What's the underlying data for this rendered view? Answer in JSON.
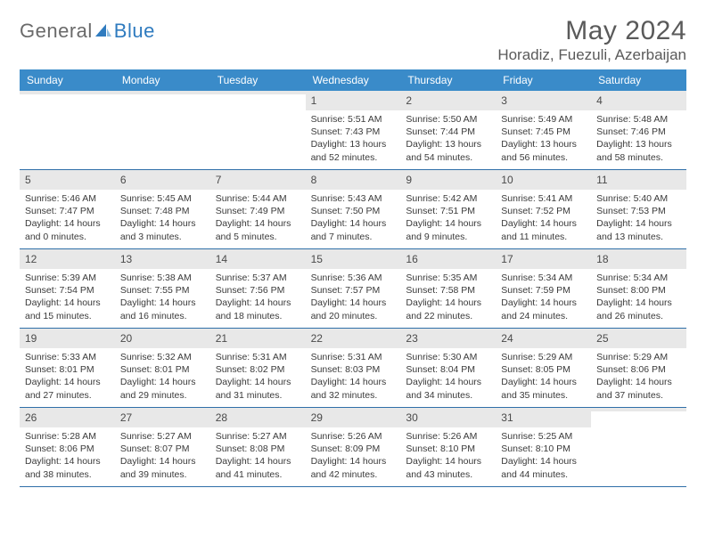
{
  "logo": {
    "general": "General",
    "blue": "Blue"
  },
  "title": "May 2024",
  "location": "Horadiz, Fuezuli, Azerbaijan",
  "colors": {
    "header_bg": "#3a8bc9",
    "header_text": "#ffffff",
    "daynum_bg": "#e8e8e8",
    "week_border": "#2f6fa8",
    "logo_blue": "#2f7bbf",
    "body_text": "#3a3a3a"
  },
  "day_names": [
    "Sunday",
    "Monday",
    "Tuesday",
    "Wednesday",
    "Thursday",
    "Friday",
    "Saturday"
  ],
  "weeks": [
    [
      {
        "empty": true
      },
      {
        "empty": true
      },
      {
        "empty": true
      },
      {
        "day": "1",
        "sunrise": "Sunrise: 5:51 AM",
        "sunset": "Sunset: 7:43 PM",
        "daylight1": "Daylight: 13 hours",
        "daylight2": "and 52 minutes."
      },
      {
        "day": "2",
        "sunrise": "Sunrise: 5:50 AM",
        "sunset": "Sunset: 7:44 PM",
        "daylight1": "Daylight: 13 hours",
        "daylight2": "and 54 minutes."
      },
      {
        "day": "3",
        "sunrise": "Sunrise: 5:49 AM",
        "sunset": "Sunset: 7:45 PM",
        "daylight1": "Daylight: 13 hours",
        "daylight2": "and 56 minutes."
      },
      {
        "day": "4",
        "sunrise": "Sunrise: 5:48 AM",
        "sunset": "Sunset: 7:46 PM",
        "daylight1": "Daylight: 13 hours",
        "daylight2": "and 58 minutes."
      }
    ],
    [
      {
        "day": "5",
        "sunrise": "Sunrise: 5:46 AM",
        "sunset": "Sunset: 7:47 PM",
        "daylight1": "Daylight: 14 hours",
        "daylight2": "and 0 minutes."
      },
      {
        "day": "6",
        "sunrise": "Sunrise: 5:45 AM",
        "sunset": "Sunset: 7:48 PM",
        "daylight1": "Daylight: 14 hours",
        "daylight2": "and 3 minutes."
      },
      {
        "day": "7",
        "sunrise": "Sunrise: 5:44 AM",
        "sunset": "Sunset: 7:49 PM",
        "daylight1": "Daylight: 14 hours",
        "daylight2": "and 5 minutes."
      },
      {
        "day": "8",
        "sunrise": "Sunrise: 5:43 AM",
        "sunset": "Sunset: 7:50 PM",
        "daylight1": "Daylight: 14 hours",
        "daylight2": "and 7 minutes."
      },
      {
        "day": "9",
        "sunrise": "Sunrise: 5:42 AM",
        "sunset": "Sunset: 7:51 PM",
        "daylight1": "Daylight: 14 hours",
        "daylight2": "and 9 minutes."
      },
      {
        "day": "10",
        "sunrise": "Sunrise: 5:41 AM",
        "sunset": "Sunset: 7:52 PM",
        "daylight1": "Daylight: 14 hours",
        "daylight2": "and 11 minutes."
      },
      {
        "day": "11",
        "sunrise": "Sunrise: 5:40 AM",
        "sunset": "Sunset: 7:53 PM",
        "daylight1": "Daylight: 14 hours",
        "daylight2": "and 13 minutes."
      }
    ],
    [
      {
        "day": "12",
        "sunrise": "Sunrise: 5:39 AM",
        "sunset": "Sunset: 7:54 PM",
        "daylight1": "Daylight: 14 hours",
        "daylight2": "and 15 minutes."
      },
      {
        "day": "13",
        "sunrise": "Sunrise: 5:38 AM",
        "sunset": "Sunset: 7:55 PM",
        "daylight1": "Daylight: 14 hours",
        "daylight2": "and 16 minutes."
      },
      {
        "day": "14",
        "sunrise": "Sunrise: 5:37 AM",
        "sunset": "Sunset: 7:56 PM",
        "daylight1": "Daylight: 14 hours",
        "daylight2": "and 18 minutes."
      },
      {
        "day": "15",
        "sunrise": "Sunrise: 5:36 AM",
        "sunset": "Sunset: 7:57 PM",
        "daylight1": "Daylight: 14 hours",
        "daylight2": "and 20 minutes."
      },
      {
        "day": "16",
        "sunrise": "Sunrise: 5:35 AM",
        "sunset": "Sunset: 7:58 PM",
        "daylight1": "Daylight: 14 hours",
        "daylight2": "and 22 minutes."
      },
      {
        "day": "17",
        "sunrise": "Sunrise: 5:34 AM",
        "sunset": "Sunset: 7:59 PM",
        "daylight1": "Daylight: 14 hours",
        "daylight2": "and 24 minutes."
      },
      {
        "day": "18",
        "sunrise": "Sunrise: 5:34 AM",
        "sunset": "Sunset: 8:00 PM",
        "daylight1": "Daylight: 14 hours",
        "daylight2": "and 26 minutes."
      }
    ],
    [
      {
        "day": "19",
        "sunrise": "Sunrise: 5:33 AM",
        "sunset": "Sunset: 8:01 PM",
        "daylight1": "Daylight: 14 hours",
        "daylight2": "and 27 minutes."
      },
      {
        "day": "20",
        "sunrise": "Sunrise: 5:32 AM",
        "sunset": "Sunset: 8:01 PM",
        "daylight1": "Daylight: 14 hours",
        "daylight2": "and 29 minutes."
      },
      {
        "day": "21",
        "sunrise": "Sunrise: 5:31 AM",
        "sunset": "Sunset: 8:02 PM",
        "daylight1": "Daylight: 14 hours",
        "daylight2": "and 31 minutes."
      },
      {
        "day": "22",
        "sunrise": "Sunrise: 5:31 AM",
        "sunset": "Sunset: 8:03 PM",
        "daylight1": "Daylight: 14 hours",
        "daylight2": "and 32 minutes."
      },
      {
        "day": "23",
        "sunrise": "Sunrise: 5:30 AM",
        "sunset": "Sunset: 8:04 PM",
        "daylight1": "Daylight: 14 hours",
        "daylight2": "and 34 minutes."
      },
      {
        "day": "24",
        "sunrise": "Sunrise: 5:29 AM",
        "sunset": "Sunset: 8:05 PM",
        "daylight1": "Daylight: 14 hours",
        "daylight2": "and 35 minutes."
      },
      {
        "day": "25",
        "sunrise": "Sunrise: 5:29 AM",
        "sunset": "Sunset: 8:06 PM",
        "daylight1": "Daylight: 14 hours",
        "daylight2": "and 37 minutes."
      }
    ],
    [
      {
        "day": "26",
        "sunrise": "Sunrise: 5:28 AM",
        "sunset": "Sunset: 8:06 PM",
        "daylight1": "Daylight: 14 hours",
        "daylight2": "and 38 minutes."
      },
      {
        "day": "27",
        "sunrise": "Sunrise: 5:27 AM",
        "sunset": "Sunset: 8:07 PM",
        "daylight1": "Daylight: 14 hours",
        "daylight2": "and 39 minutes."
      },
      {
        "day": "28",
        "sunrise": "Sunrise: 5:27 AM",
        "sunset": "Sunset: 8:08 PM",
        "daylight1": "Daylight: 14 hours",
        "daylight2": "and 41 minutes."
      },
      {
        "day": "29",
        "sunrise": "Sunrise: 5:26 AM",
        "sunset": "Sunset: 8:09 PM",
        "daylight1": "Daylight: 14 hours",
        "daylight2": "and 42 minutes."
      },
      {
        "day": "30",
        "sunrise": "Sunrise: 5:26 AM",
        "sunset": "Sunset: 8:10 PM",
        "daylight1": "Daylight: 14 hours",
        "daylight2": "and 43 minutes."
      },
      {
        "day": "31",
        "sunrise": "Sunrise: 5:25 AM",
        "sunset": "Sunset: 8:10 PM",
        "daylight1": "Daylight: 14 hours",
        "daylight2": "and 44 minutes."
      },
      {
        "empty": true
      }
    ]
  ]
}
